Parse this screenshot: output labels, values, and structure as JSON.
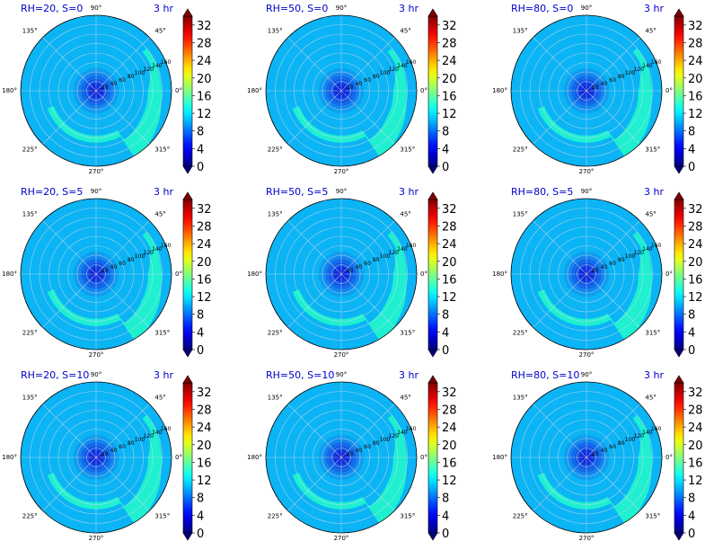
{
  "chart_data": {
    "type": "polar-contour",
    "rows": 3,
    "cols": 3,
    "time_label": "3 hr",
    "angle_ticks": [
      "0°",
      "45°",
      "90°",
      "135°",
      "180°",
      "225°",
      "270°",
      "315°"
    ],
    "radius_ticks": [
      20,
      40,
      60,
      80,
      100,
      120,
      140,
      160
    ],
    "rmax": 160,
    "colorbar": {
      "ticks": [
        0,
        4,
        8,
        12,
        16,
        20,
        24,
        28,
        32
      ],
      "min": 0,
      "max": 34,
      "colormap": "jet",
      "extend": "both"
    },
    "contours": {
      "background_color": "#0bb4f5",
      "center_rings": [
        {
          "radius": 48,
          "color": "#0f9ef0"
        },
        {
          "radius": 40,
          "color": "#1286ee"
        },
        {
          "radius": 32,
          "color": "#1269ea"
        },
        {
          "radius": 24,
          "color": "#114fe6"
        },
        {
          "radius": 16,
          "color": "#0d30de"
        },
        {
          "radius": 8,
          "color": "#0b12d6"
        }
      ],
      "band": {
        "color": "#1ef0d0",
        "inner_radius": [
          [
            -60,
            120
          ],
          [
            -30,
            112
          ],
          [
            0,
            110
          ],
          [
            15,
            118
          ],
          [
            25,
            128
          ]
        ],
        "outer_radius": [
          [
            -50,
            160
          ],
          [
            -10,
            140
          ],
          [
            10,
            138
          ],
          [
            25,
            140
          ],
          [
            40,
            140
          ]
        ],
        "tail_angle_start": -160,
        "tail_radius_inner": 95,
        "tail_radius_outer": 110
      }
    },
    "panels": [
      {
        "title": "RH=20, S=0"
      },
      {
        "title": "RH=50, S=0"
      },
      {
        "title": "RH=80, S=0"
      },
      {
        "title": "RH=20, S=5"
      },
      {
        "title": "RH=50, S=5"
      },
      {
        "title": "RH=80, S=5"
      },
      {
        "title": "RH=20, S=10"
      },
      {
        "title": "RH=50, S=10"
      },
      {
        "title": "RH=80, S=10"
      }
    ],
    "colors": {
      "title": "#0000cc",
      "grid": "#c8d8e8",
      "axis_text": "#000000"
    }
  }
}
